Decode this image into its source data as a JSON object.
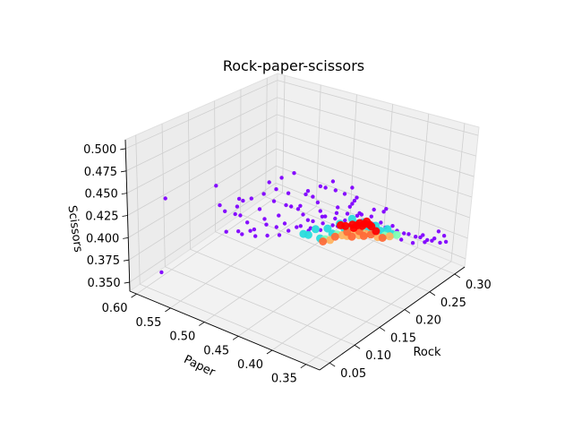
{
  "chart_data": {
    "type": "scatter",
    "projection": "3d",
    "title": "Rock-paper-scissors",
    "xlabel": "Rock",
    "ylabel": "Paper",
    "zlabel": "Scissors",
    "xlim": [
      0.03,
      0.32
    ],
    "ylim": [
      0.33,
      0.61
    ],
    "zlim": [
      0.34,
      0.51
    ],
    "x_ticks": [
      "0.05",
      "0.10",
      "0.15",
      "0.20",
      "0.25",
      "0.30"
    ],
    "y_ticks": [
      "0.35",
      "0.40",
      "0.45",
      "0.50",
      "0.55",
      "0.60"
    ],
    "z_ticks": [
      "0.350",
      "0.375",
      "0.400",
      "0.425",
      "0.450",
      "0.475",
      "0.500"
    ],
    "colormap": "rainbow",
    "grid": true,
    "series": [
      {
        "color_value": 0.0,
        "color": "#7f00ff",
        "points": [
          [
            0.05,
            0.46,
            0.48
          ],
          [
            0.08,
            0.52,
            0.47
          ],
          [
            0.05,
            0.57,
            0.45
          ],
          [
            0.04,
            0.57,
            0.37
          ],
          [
            0.1,
            0.45,
            0.48
          ],
          [
            0.1,
            0.46,
            0.485
          ],
          [
            0.11,
            0.45,
            0.49
          ],
          [
            0.12,
            0.44,
            0.495
          ],
          [
            0.13,
            0.43,
            0.47
          ],
          [
            0.12,
            0.43,
            0.46
          ],
          [
            0.14,
            0.42,
            0.46
          ],
          [
            0.13,
            0.42,
            0.47
          ],
          [
            0.14,
            0.41,
            0.48
          ],
          [
            0.15,
            0.42,
            0.44
          ],
          [
            0.16,
            0.41,
            0.47
          ],
          [
            0.15,
            0.4,
            0.45
          ],
          [
            0.13,
            0.45,
            0.45
          ],
          [
            0.12,
            0.46,
            0.44
          ],
          [
            0.11,
            0.47,
            0.43
          ],
          [
            0.1,
            0.48,
            0.425
          ],
          [
            0.09,
            0.49,
            0.42
          ],
          [
            0.1,
            0.49,
            0.43
          ],
          [
            0.11,
            0.48,
            0.445
          ],
          [
            0.12,
            0.48,
            0.43
          ],
          [
            0.13,
            0.47,
            0.42
          ],
          [
            0.14,
            0.46,
            0.415
          ],
          [
            0.15,
            0.45,
            0.42
          ],
          [
            0.16,
            0.44,
            0.425
          ],
          [
            0.17,
            0.43,
            0.43
          ],
          [
            0.18,
            0.42,
            0.44
          ],
          [
            0.16,
            0.43,
            0.44
          ],
          [
            0.15,
            0.44,
            0.43
          ],
          [
            0.14,
            0.44,
            0.44
          ],
          [
            0.13,
            0.44,
            0.45
          ],
          [
            0.12,
            0.45,
            0.455
          ],
          [
            0.11,
            0.46,
            0.46
          ],
          [
            0.17,
            0.45,
            0.41
          ],
          [
            0.18,
            0.44,
            0.415
          ],
          [
            0.19,
            0.43,
            0.42
          ],
          [
            0.2,
            0.42,
            0.425
          ],
          [
            0.19,
            0.45,
            0.4
          ],
          [
            0.18,
            0.46,
            0.4
          ],
          [
            0.17,
            0.47,
            0.405
          ],
          [
            0.16,
            0.48,
            0.41
          ],
          [
            0.2,
            0.44,
            0.405
          ],
          [
            0.21,
            0.43,
            0.41
          ],
          [
            0.21,
            0.44,
            0.4
          ],
          [
            0.22,
            0.43,
            0.4
          ],
          [
            0.22,
            0.42,
            0.415
          ],
          [
            0.23,
            0.42,
            0.405
          ],
          [
            0.12,
            0.5,
            0.41
          ],
          [
            0.13,
            0.5,
            0.4
          ],
          [
            0.14,
            0.49,
            0.4
          ],
          [
            0.15,
            0.48,
            0.4
          ],
          [
            0.11,
            0.51,
            0.41
          ],
          [
            0.1,
            0.52,
            0.41
          ],
          [
            0.24,
            0.41,
            0.4
          ],
          [
            0.25,
            0.4,
            0.395
          ],
          [
            0.26,
            0.39,
            0.39
          ],
          [
            0.27,
            0.38,
            0.385
          ],
          [
            0.28,
            0.37,
            0.38
          ],
          [
            0.29,
            0.36,
            0.375
          ],
          [
            0.3,
            0.355,
            0.37
          ],
          [
            0.26,
            0.38,
            0.39
          ],
          [
            0.27,
            0.37,
            0.385
          ],
          [
            0.28,
            0.36,
            0.38
          ],
          [
            0.25,
            0.39,
            0.4
          ],
          [
            0.24,
            0.4,
            0.405
          ],
          [
            0.29,
            0.37,
            0.37
          ],
          [
            0.28,
            0.38,
            0.37
          ],
          [
            0.27,
            0.39,
            0.375
          ],
          [
            0.26,
            0.4,
            0.38
          ],
          [
            0.25,
            0.41,
            0.385
          ],
          [
            0.24,
            0.42,
            0.39
          ],
          [
            0.23,
            0.43,
            0.395
          ],
          [
            0.27,
            0.36,
            0.39
          ],
          [
            0.28,
            0.35,
            0.385
          ],
          [
            0.29,
            0.34,
            0.38
          ],
          [
            0.28,
            0.345,
            0.395
          ],
          [
            0.3,
            0.35,
            0.38
          ],
          [
            0.08,
            0.47,
            0.47
          ],
          [
            0.07,
            0.48,
            0.47
          ],
          [
            0.09,
            0.46,
            0.475
          ],
          [
            0.06,
            0.5,
            0.46
          ],
          [
            0.07,
            0.5,
            0.45
          ],
          [
            0.08,
            0.49,
            0.455
          ],
          [
            0.09,
            0.5,
            0.44
          ],
          [
            0.1,
            0.5,
            0.435
          ],
          [
            0.11,
            0.44,
            0.475
          ],
          [
            0.12,
            0.42,
            0.48
          ],
          [
            0.13,
            0.41,
            0.485
          ],
          [
            0.14,
            0.4,
            0.49
          ],
          [
            0.15,
            0.39,
            0.475
          ],
          [
            0.16,
            0.38,
            0.47
          ],
          [
            0.15,
            0.38,
            0.485
          ],
          [
            0.17,
            0.39,
            0.46
          ],
          [
            0.18,
            0.4,
            0.45
          ],
          [
            0.19,
            0.41,
            0.44
          ],
          [
            0.2,
            0.4,
            0.43
          ],
          [
            0.21,
            0.39,
            0.435
          ],
          [
            0.22,
            0.4,
            0.42
          ],
          [
            0.23,
            0.39,
            0.425
          ],
          [
            0.22,
            0.38,
            0.435
          ],
          [
            0.21,
            0.41,
            0.425
          ]
        ]
      },
      {
        "color_value": 0.35,
        "color": "#2adcdc",
        "points": [
          [
            0.2,
            0.44,
            0.395
          ],
          [
            0.21,
            0.43,
            0.4
          ],
          [
            0.22,
            0.42,
            0.405
          ],
          [
            0.19,
            0.45,
            0.39
          ],
          [
            0.18,
            0.46,
            0.395
          ],
          [
            0.2,
            0.43,
            0.41
          ],
          [
            0.21,
            0.42,
            0.415
          ],
          [
            0.23,
            0.41,
            0.4
          ],
          [
            0.24,
            0.4,
            0.395
          ],
          [
            0.22,
            0.41,
            0.41
          ],
          [
            0.19,
            0.44,
            0.405
          ],
          [
            0.17,
            0.46,
            0.4
          ],
          [
            0.25,
            0.39,
            0.39
          ],
          [
            0.24,
            0.39,
            0.4
          ],
          [
            0.23,
            0.4,
            0.405
          ],
          [
            0.18,
            0.45,
            0.405
          ]
        ]
      },
      {
        "color_value": 0.5,
        "color": "#80ffb4",
        "points": [
          [
            0.22,
            0.43,
            0.395
          ],
          [
            0.23,
            0.42,
            0.395
          ],
          [
            0.21,
            0.44,
            0.39
          ],
          [
            0.24,
            0.41,
            0.39
          ],
          [
            0.25,
            0.4,
            0.385
          ],
          [
            0.2,
            0.45,
            0.385
          ],
          [
            0.26,
            0.39,
            0.385
          ],
          [
            0.22,
            0.42,
            0.4
          ]
        ]
      },
      {
        "color_value": 0.7,
        "color": "#ffb360",
        "points": [
          [
            0.23,
            0.43,
            0.39
          ],
          [
            0.24,
            0.42,
            0.385
          ],
          [
            0.22,
            0.44,
            0.385
          ],
          [
            0.25,
            0.41,
            0.38
          ],
          [
            0.21,
            0.45,
            0.38
          ],
          [
            0.26,
            0.4,
            0.38
          ],
          [
            0.24,
            0.43,
            0.38
          ],
          [
            0.23,
            0.44,
            0.38
          ]
        ]
      },
      {
        "color_value": 0.85,
        "color": "#ff6a38",
        "points": [
          [
            0.23,
            0.44,
            0.385
          ],
          [
            0.24,
            0.43,
            0.385
          ],
          [
            0.25,
            0.42,
            0.38
          ],
          [
            0.22,
            0.45,
            0.38
          ],
          [
            0.26,
            0.41,
            0.375
          ],
          [
            0.24,
            0.44,
            0.375
          ],
          [
            0.25,
            0.43,
            0.375
          ],
          [
            0.21,
            0.46,
            0.375
          ]
        ]
      },
      {
        "color_value": 1.0,
        "color": "#ff0000",
        "points": [
          [
            0.24,
            0.44,
            0.39
          ],
          [
            0.25,
            0.43,
            0.39
          ],
          [
            0.24,
            0.43,
            0.395
          ],
          [
            0.25,
            0.44,
            0.385
          ],
          [
            0.26,
            0.43,
            0.385
          ],
          [
            0.25,
            0.42,
            0.39
          ],
          [
            0.26,
            0.42,
            0.38
          ],
          [
            0.24,
            0.45,
            0.385
          ],
          [
            0.25,
            0.445,
            0.38
          ],
          [
            0.23,
            0.45,
            0.39
          ],
          [
            0.26,
            0.44,
            0.38
          ],
          [
            0.24,
            0.42,
            0.4
          ]
        ]
      }
    ]
  }
}
